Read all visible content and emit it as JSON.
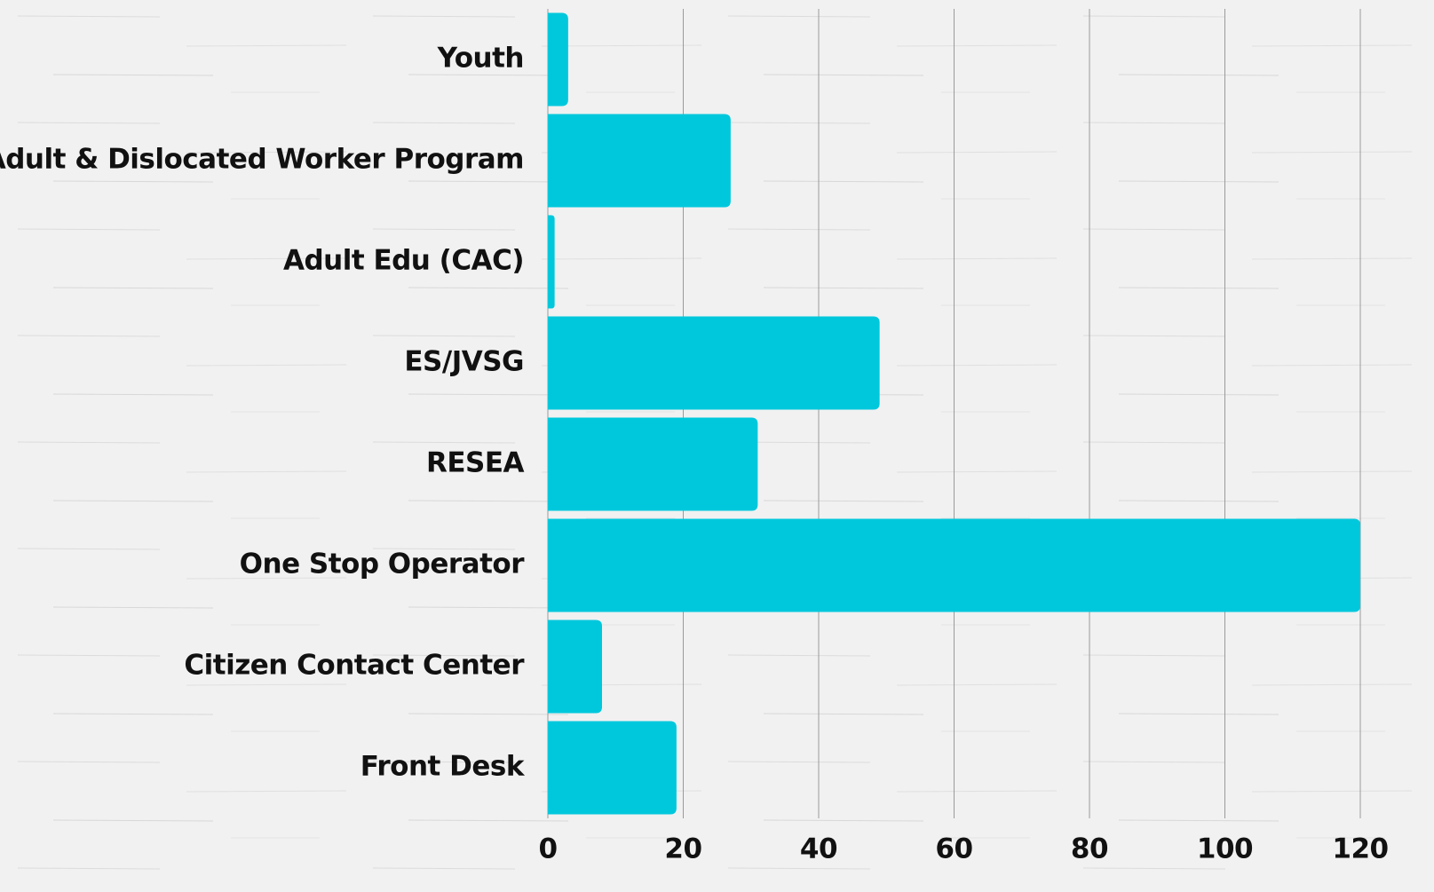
{
  "chart_data": {
    "type": "barh",
    "categories": [
      "Youth",
      "Adult & Dislocated Worker Program",
      "Adult Edu (CAC)",
      "ES/JVSG",
      "RESEA",
      "One Stop Operator",
      "Citizen Contact Center",
      "Front Desk"
    ],
    "values": [
      3,
      27,
      1,
      49,
      31,
      120,
      8,
      19
    ],
    "color": "#00c8dc",
    "xlim": [
      0,
      120
    ],
    "xticks": [
      0,
      20,
      40,
      60,
      80,
      100,
      120
    ],
    "grid": true
  }
}
